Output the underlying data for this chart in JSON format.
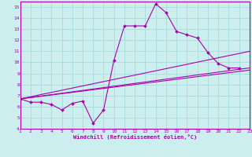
{
  "xlabel": "Windchill (Refroidissement éolien,°C)",
  "bg_color": "#cceeee",
  "grid_color": "#aadddd",
  "line_color": "#aa00aa",
  "xlim": [
    1,
    23
  ],
  "ylim": [
    4,
    15.5
  ],
  "yticks": [
    4,
    5,
    6,
    7,
    8,
    9,
    10,
    11,
    12,
    13,
    14,
    15
  ],
  "xticks": [
    1,
    2,
    3,
    4,
    5,
    6,
    7,
    8,
    9,
    10,
    11,
    12,
    13,
    14,
    15,
    16,
    17,
    18,
    19,
    20,
    21,
    22,
    23
  ],
  "series": [
    {
      "x": [
        1,
        2,
        3,
        4,
        5,
        6,
        7,
        8,
        9,
        10,
        11,
        12,
        13,
        14,
        15,
        16,
        17,
        18,
        19,
        20,
        21,
        22
      ],
      "y": [
        6.7,
        6.4,
        6.4,
        6.2,
        5.7,
        6.3,
        6.5,
        4.5,
        5.7,
        10.2,
        13.3,
        13.3,
        13.3,
        15.3,
        14.5,
        12.8,
        12.5,
        12.2,
        10.9,
        9.9,
        9.5,
        9.5
      ],
      "marker": "D",
      "markersize": 2.0
    },
    {
      "x": [
        1,
        23
      ],
      "y": [
        6.7,
        9.5
      ],
      "marker": null,
      "markersize": 0
    },
    {
      "x": [
        1,
        23
      ],
      "y": [
        6.7,
        11.0
      ],
      "marker": null,
      "markersize": 0
    },
    {
      "x": [
        1,
        23
      ],
      "y": [
        6.7,
        9.3
      ],
      "marker": null,
      "markersize": 0
    }
  ]
}
